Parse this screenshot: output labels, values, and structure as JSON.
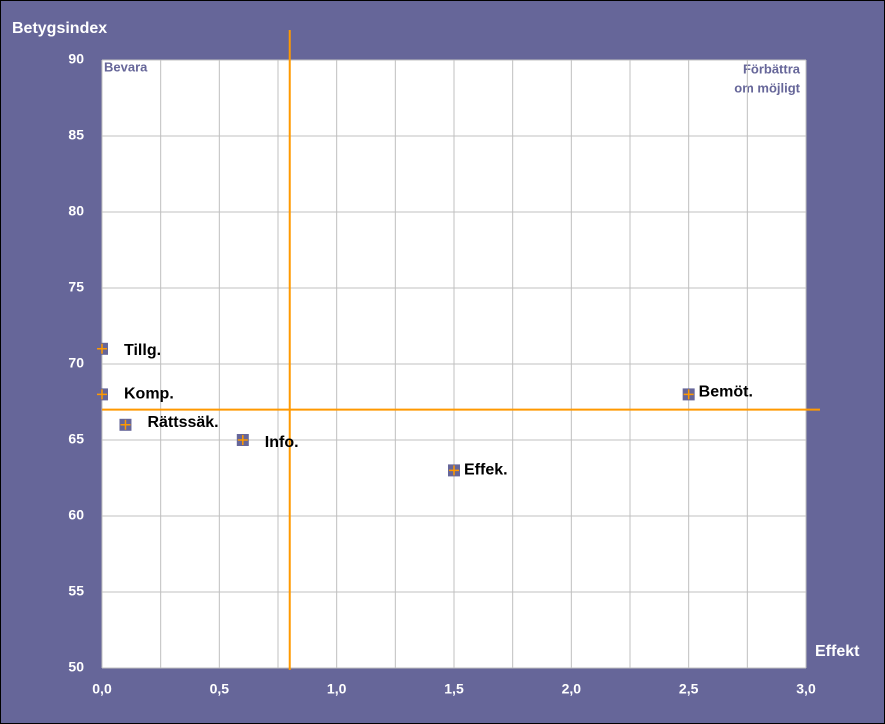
{
  "chart_data": {
    "type": "scatter",
    "ylabel": "Betygsindex",
    "xlabel": "Effekt",
    "annotations": [
      "Bevara",
      "Förbättra",
      "om möjligt"
    ],
    "labels": [
      "Tillg.",
      "Komp.",
      "Rättssäk.",
      "Info.",
      "Effek.",
      "Bemöt."
    ],
    "x": [
      0,
      0,
      0.1,
      0.6,
      1.5,
      2.5
    ],
    "y": [
      71,
      68,
      66,
      65,
      63,
      68
    ],
    "marker_color": "#666699",
    "cross_color": "#ff9900",
    "reference_lines": {
      "x": 0.8,
      "y": 67,
      "color": "#ff9900"
    },
    "xlim": [
      0,
      3
    ],
    "ylim": [
      50,
      90
    ],
    "xticks": [
      {
        "value": 0,
        "label": "0,0"
      },
      {
        "value": 0.5,
        "label": "0,5"
      },
      {
        "value": 1,
        "label": "1,0"
      },
      {
        "value": 1.5,
        "label": "1,5"
      },
      {
        "value": 2,
        "label": "2,0"
      },
      {
        "value": 2.5,
        "label": "2,5"
      },
      {
        "value": 3,
        "label": "3,0"
      }
    ],
    "xminorticks": [
      0.25,
      0.75,
      1.25,
      1.75,
      2.25,
      2.75
    ],
    "yticks": [
      50,
      55,
      60,
      65,
      70,
      75,
      80,
      85,
      90
    ],
    "grid": true
  }
}
